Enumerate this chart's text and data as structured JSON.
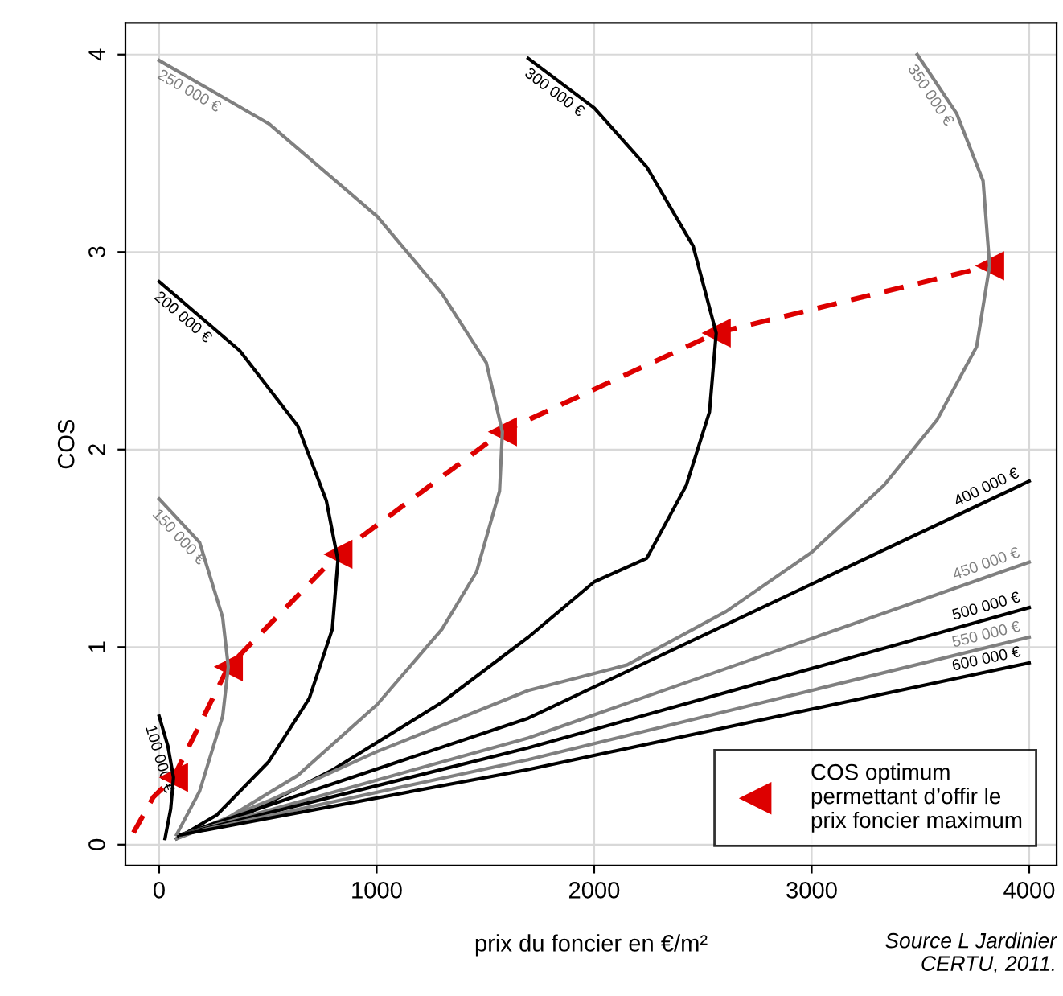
{
  "chart_data": {
    "type": "line",
    "xlabel": "prix du foncier en €/m²",
    "ylabel": "COS",
    "xlim": [
      -155,
      4126
    ],
    "ylim": [
      -0.106,
      4.16
    ],
    "xticks": [
      0,
      1000,
      2000,
      3000,
      4000
    ],
    "yticks": [
      0,
      1,
      2,
      3,
      4
    ],
    "grid": true,
    "legend": "bottom right",
    "annotations": [
      "Source L Jardinier\nCERTU, 2011."
    ],
    "series": [
      {
        "name": "100 000 €",
        "color": "#000000",
        "x": [
          0,
          40,
          66,
          53,
          27
        ],
        "values": [
          0.65,
          0.5,
          0.34,
          0.18,
          0.03
        ]
      },
      {
        "name": "150 000 €",
        "color": "#808080",
        "x": [
          0,
          186,
          292,
          318,
          292,
          186,
          80
        ],
        "values": [
          1.75,
          1.53,
          1.15,
          0.9,
          0.65,
          0.27,
          0.05
        ]
      },
      {
        "name": "200 000 €",
        "color": "#000000",
        "x": [
          0,
          371,
          637,
          769,
          822,
          796,
          690,
          504,
          265,
          80
        ],
        "values": [
          2.85,
          2.5,
          2.12,
          1.74,
          1.44,
          1.09,
          0.74,
          0.42,
          0.15,
          0.03
        ]
      },
      {
        "name": "250 000 €",
        "color": "#808080",
        "x": [
          0,
          504,
          1003,
          1300,
          1504,
          1578,
          1565,
          1459,
          1300,
          1003,
          637,
          292,
          80
        ],
        "values": [
          3.97,
          3.65,
          3.18,
          2.79,
          2.44,
          2.09,
          1.79,
          1.38,
          1.09,
          0.71,
          0.35,
          0.12,
          0.03
        ]
      },
      {
        "name": "300 000 €",
        "color": "#000000",
        "x": [
          1697,
          2000,
          2242,
          2455,
          2561,
          2530,
          2424,
          2242,
          2000,
          1697,
          1300,
          800,
          377,
          90
        ],
        "values": [
          3.98,
          3.73,
          3.43,
          3.03,
          2.59,
          2.19,
          1.82,
          1.45,
          1.33,
          1.05,
          0.72,
          0.38,
          0.14,
          0.04
        ]
      },
      {
        "name": "350 000 €",
        "color": "#808080",
        "x": [
          3485,
          3667,
          3788,
          3818,
          3758,
          3576,
          3333,
          3000,
          2606,
          2152,
          1697,
          1000,
          500,
          100
        ],
        "values": [
          4.0,
          3.7,
          3.36,
          2.93,
          2.52,
          2.15,
          1.82,
          1.48,
          1.18,
          0.91,
          0.78,
          0.47,
          0.22,
          0.04
        ]
      },
      {
        "name": "400 000 €",
        "color": "#000000",
        "x": [
          100,
          1697,
          4000
        ],
        "values": [
          0.05,
          0.64,
          1.84
        ]
      },
      {
        "name": "450 000 €",
        "color": "#808080",
        "x": [
          100,
          1697,
          4000
        ],
        "values": [
          0.05,
          0.54,
          1.43
        ]
      },
      {
        "name": "500 000 €",
        "color": "#000000",
        "x": [
          100,
          1697,
          4000
        ],
        "values": [
          0.05,
          0.49,
          1.2
        ]
      },
      {
        "name": "550 000 €",
        "color": "#808080",
        "x": [
          100,
          1697,
          4000
        ],
        "values": [
          0.05,
          0.43,
          1.05
        ]
      },
      {
        "name": "600 000 €",
        "color": "#000000",
        "x": [
          100,
          1697,
          4000
        ],
        "values": [
          0.05,
          0.38,
          0.92
        ]
      },
      {
        "color": "#dd0000",
        "line_style": "dashed",
        "x": [
          -118,
          -27,
          66,
          318,
          822,
          1578,
          2561,
          3818
        ],
        "values": [
          0.06,
          0.24,
          0.34,
          0.9,
          1.47,
          2.09,
          2.59,
          2.93
        ]
      },
      {
        "name": "COS optimum\npermettant d’offir le\nprix foncier maximum",
        "type": "scatter",
        "marker": "triangle",
        "color": "#dd0000",
        "x": [
          66,
          318,
          822,
          1578,
          2561,
          3818
        ],
        "values": [
          0.34,
          0.9,
          1.47,
          2.09,
          2.59,
          2.93
        ]
      }
    ]
  }
}
